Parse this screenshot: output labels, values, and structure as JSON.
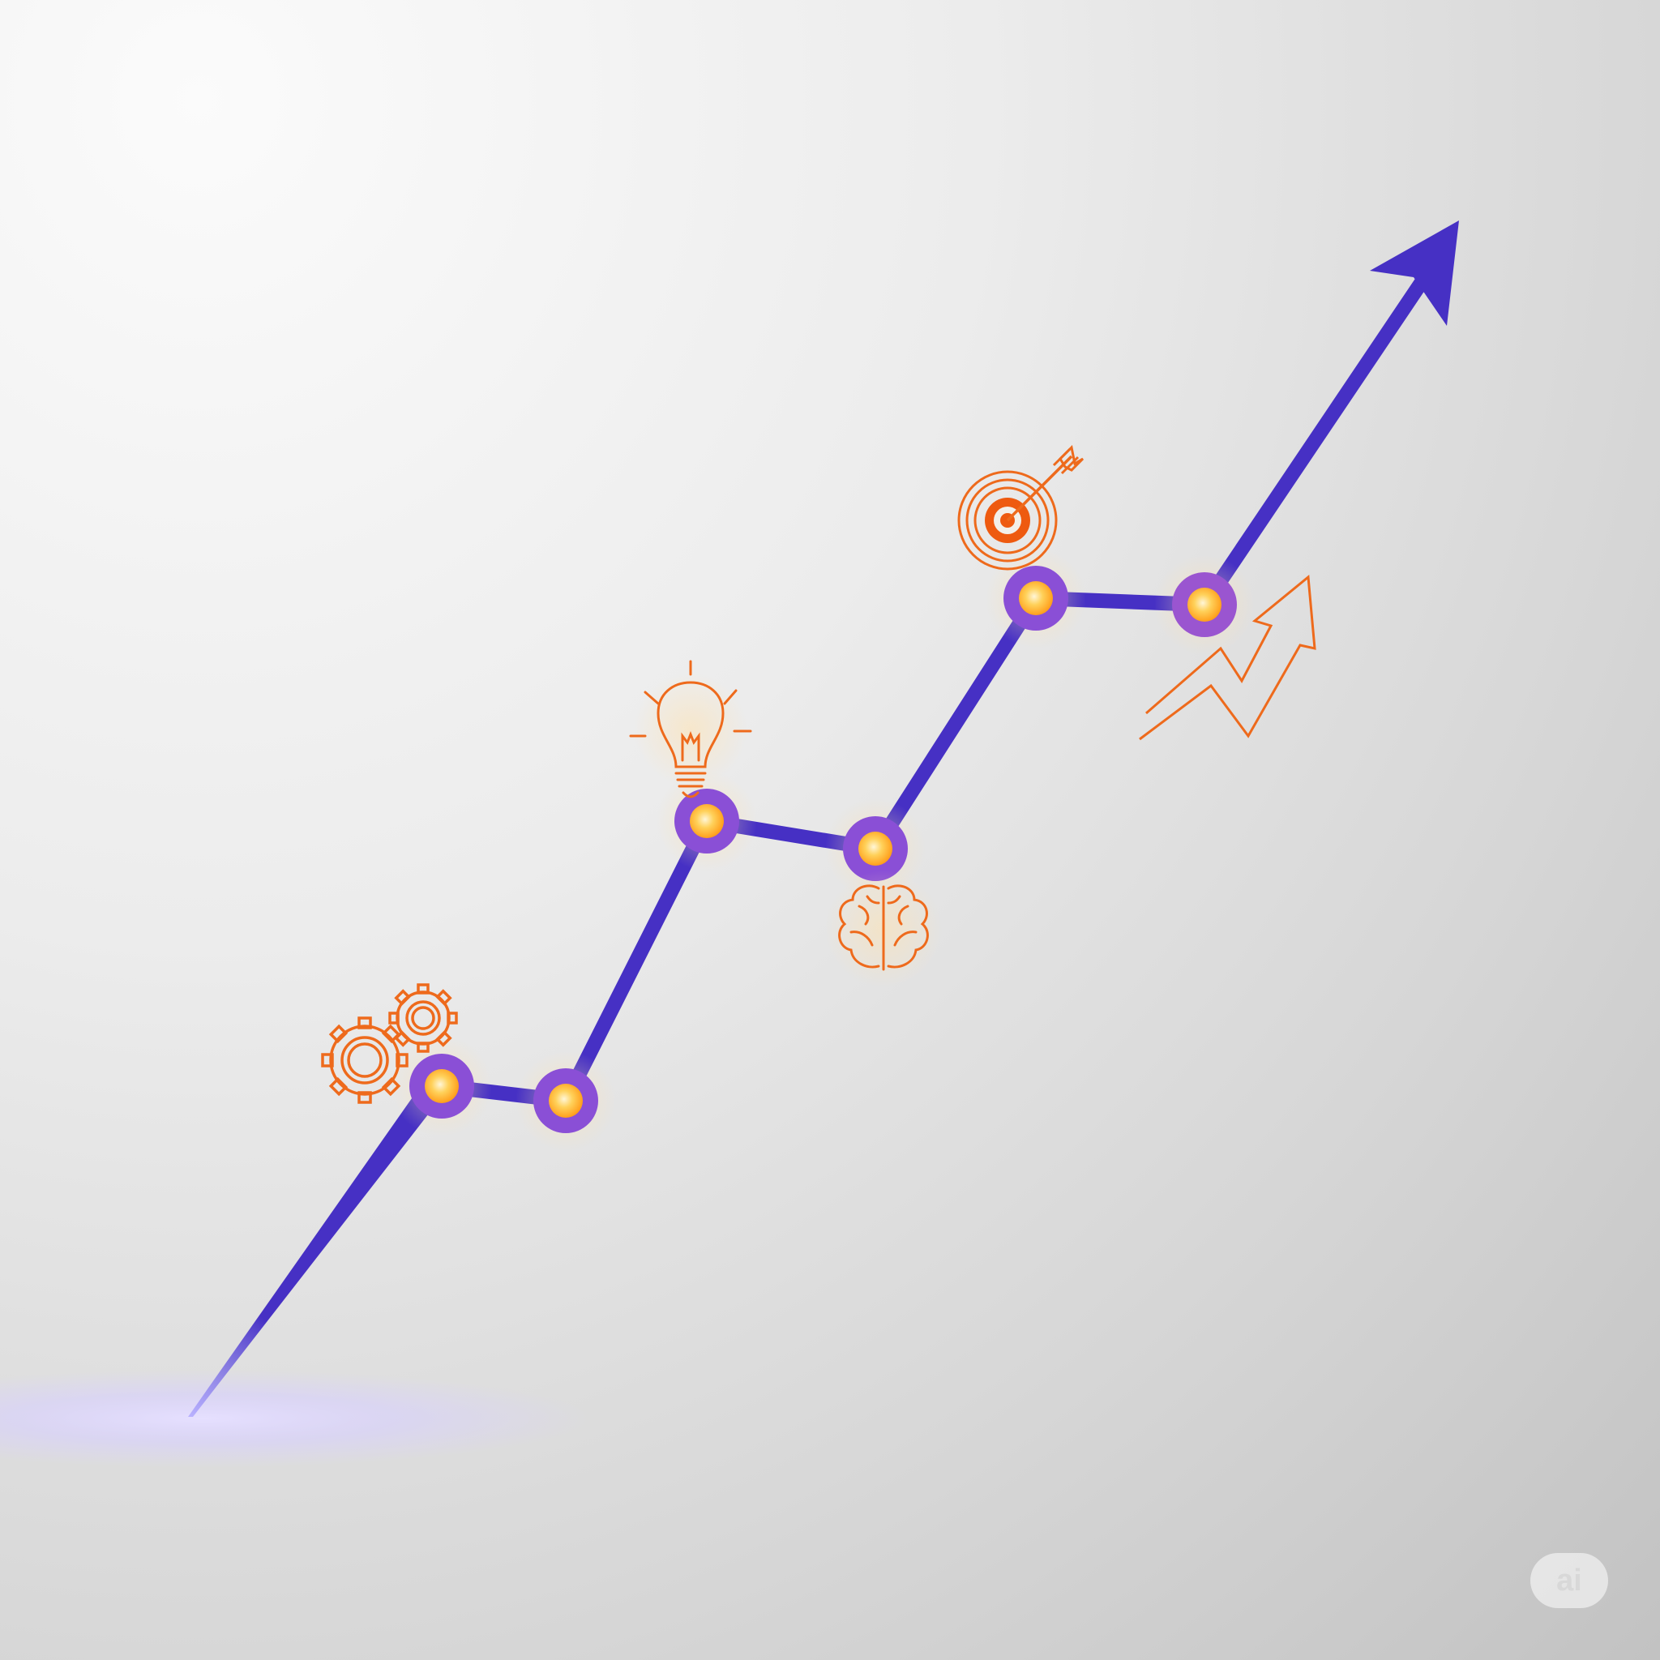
{
  "colors": {
    "line": "#4630c4",
    "node_ring": "#8a4fd6",
    "node_core": "#ffb52e",
    "icon": "#ee6a1c",
    "glow": "#d9d2ff"
  },
  "nodes": [
    {
      "id": "n1",
      "icon": "gears-icon"
    },
    {
      "id": "n2",
      "icon": null
    },
    {
      "id": "n3",
      "icon": "lightbulb-icon"
    },
    {
      "id": "n4",
      "icon": "brain-icon"
    },
    {
      "id": "n5",
      "icon": "target-icon"
    },
    {
      "id": "n6",
      "icon": "growth-arrow-icon"
    }
  ],
  "watermark": {
    "text": "ai"
  }
}
